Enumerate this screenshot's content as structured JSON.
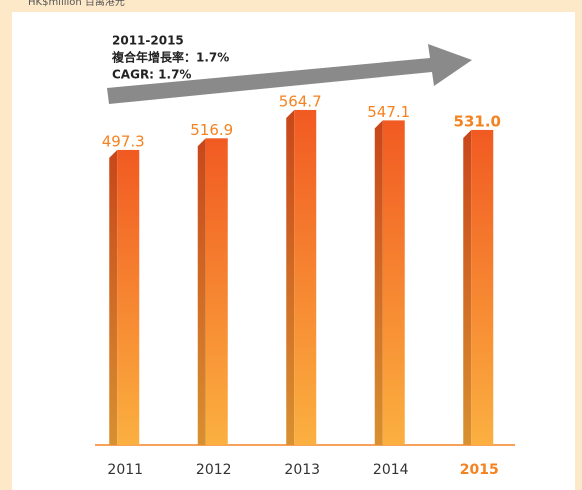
{
  "chart_data": {
    "type": "bar",
    "unit_label": "HK$million 百萬港元",
    "annotations": [
      "2011-2015",
      "複合年增長率：1.7%",
      "CAGR: 1.7%"
    ],
    "categories": [
      "2011",
      "2012",
      "2013",
      "2014",
      "2015"
    ],
    "values": [
      497.3,
      516.9,
      564.7,
      547.1,
      531.0
    ],
    "value_labels": [
      "497.3",
      "516.9",
      "564.7",
      "547.1",
      "531.0"
    ],
    "highlight": "2015",
    "color": "#f58220",
    "ylim": [
      0,
      600
    ]
  }
}
